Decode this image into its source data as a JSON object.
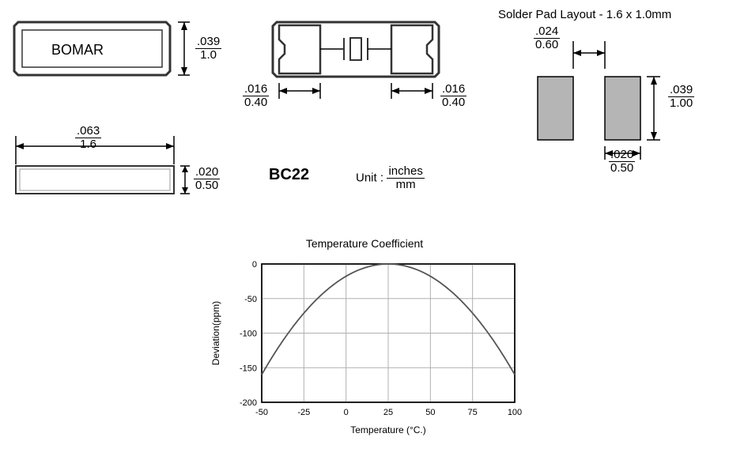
{
  "topview": {
    "label": "BOMAR",
    "dim_h_in": ".039",
    "dim_h_mm": "1.0"
  },
  "sideview": {
    "dim_w_in": ".063",
    "dim_w_mm": "1.6",
    "dim_h_in": ".020",
    "dim_h_mm": "0.50"
  },
  "bottomview": {
    "pad_in": ".016",
    "pad_mm": "0.40"
  },
  "partname": "BC22",
  "unit_label": "Unit :",
  "unit_top": "inches",
  "unit_bot": "mm",
  "solder": {
    "title": "Solder Pad Layout - 1.6 x 1.0mm",
    "gap_in": ".024",
    "gap_mm": "0.60",
    "h_in": ".039",
    "h_mm": "1.00",
    "w_in": ".020",
    "w_mm": "0.50",
    "pad_color": "#b5b5b5"
  },
  "chart": {
    "title": "Temperature Coefficient",
    "xlabel": "Temperature (°C.)",
    "ylabel": "Deviation(ppm)",
    "type": "line",
    "xlim": [
      -50,
      100
    ],
    "ylim": [
      -200,
      0
    ],
    "xtick_step": 25,
    "ytick_step": 50,
    "xticks": [
      -50,
      -25,
      0,
      25,
      50,
      75,
      100
    ],
    "yticks": [
      0,
      -50,
      -100,
      -150,
      -200
    ],
    "grid_color": "#b0b0b0",
    "border_color": "#000000",
    "curve_color": "#555555",
    "background_color": "#ffffff",
    "label_fontsize": 12,
    "tick_fontsize": 11,
    "data": [
      {
        "x": -50,
        "y": -160
      },
      {
        "x": -25,
        "y": -70
      },
      {
        "x": 0,
        "y": -17
      },
      {
        "x": 25,
        "y": 0
      },
      {
        "x": 50,
        "y": -17
      },
      {
        "x": 75,
        "y": -70
      },
      {
        "x": 100,
        "y": -160
      }
    ]
  }
}
